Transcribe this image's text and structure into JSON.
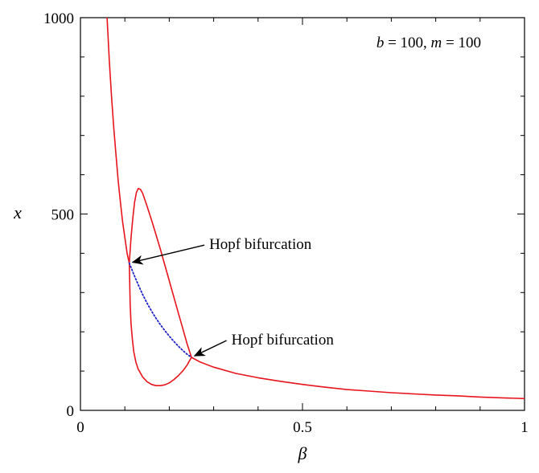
{
  "chart_data": {
    "type": "line",
    "xlabel": "β",
    "ylabel": "x",
    "xlim": [
      0,
      1
    ],
    "ylim": [
      0,
      1000
    ],
    "x_ticks": [
      "0",
      "0.5",
      "1"
    ],
    "y_ticks": [
      "0",
      "500",
      "1000"
    ],
    "parameter_label": "b = 100, m = 100",
    "grid": false,
    "colors": {
      "stable": "#e8141c",
      "unstable": "#1e22c8"
    },
    "series": [
      {
        "style": "solid",
        "color": "#e8141c",
        "x": [
          0.06,
          0.065,
          0.07,
          0.075,
          0.08,
          0.085,
          0.09,
          0.095,
          0.1,
          0.105,
          0.11
        ],
        "y": [
          1000,
          890,
          800,
          720,
          650,
          585,
          530,
          480,
          440,
          400,
          375
        ]
      },
      {
        "style": "solid",
        "color": "#e8141c",
        "x": [
          0.11,
          0.114,
          0.118,
          0.122,
          0.126,
          0.13,
          0.135,
          0.14,
          0.15,
          0.16,
          0.17,
          0.18,
          0.19,
          0.2,
          0.21,
          0.22,
          0.23,
          0.24,
          0.25
        ],
        "y": [
          375,
          440,
          490,
          530,
          555,
          565,
          563,
          553,
          520,
          485,
          448,
          410,
          370,
          330,
          290,
          250,
          210,
          170,
          135
        ]
      },
      {
        "style": "solid",
        "color": "#e8141c",
        "x": [
          0.11,
          0.111,
          0.112,
          0.114,
          0.117,
          0.12,
          0.125,
          0.13,
          0.14,
          0.15,
          0.16,
          0.17,
          0.18,
          0.19,
          0.2,
          0.21,
          0.22,
          0.23,
          0.24,
          0.245,
          0.25
        ],
        "y": [
          375,
          320,
          270,
          220,
          180,
          150,
          122,
          105,
          85,
          73,
          66,
          63,
          63,
          65,
          70,
          78,
          88,
          100,
          115,
          125,
          135
        ]
      },
      {
        "style": "dotted",
        "color": "#1e22c8",
        "x": [
          0.11,
          0.12,
          0.13,
          0.14,
          0.15,
          0.16,
          0.17,
          0.18,
          0.19,
          0.2,
          0.21,
          0.22,
          0.23,
          0.24,
          0.25
        ],
        "y": [
          375,
          347,
          320,
          295,
          273,
          253,
          235,
          218,
          203,
          189,
          176,
          164,
          153,
          143,
          135
        ]
      },
      {
        "style": "solid",
        "color": "#e8141c",
        "x": [
          0.25,
          0.27,
          0.3,
          0.35,
          0.4,
          0.45,
          0.5,
          0.55,
          0.6,
          0.65,
          0.7,
          0.75,
          0.8,
          0.85,
          0.9,
          0.95,
          1.0
        ],
        "y": [
          135,
          123,
          110,
          94,
          83,
          74,
          66,
          59,
          53,
          49,
          45,
          42,
          39,
          37,
          34,
          32,
          30
        ]
      }
    ],
    "annotations": [
      {
        "text": "Hopf bifurcation",
        "point": [
          0.11,
          375
        ],
        "label_at": [
          0.29,
          423
        ]
      },
      {
        "text": "Hopf bifurcation",
        "point": [
          0.25,
          135
        ],
        "label_at": [
          0.34,
          180
        ]
      }
    ]
  }
}
